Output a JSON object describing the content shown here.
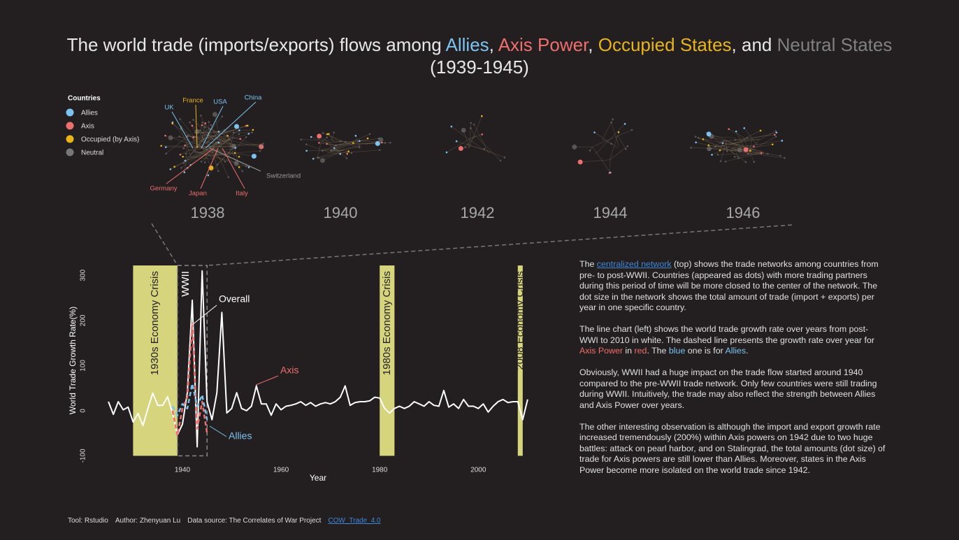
{
  "header": {
    "title": [
      {
        "text": "The world trade (imports/exports) flows among "
      },
      {
        "text": "Allies",
        "color": "#7cc3f0"
      },
      {
        "text": ", "
      },
      {
        "text": "Axis Power",
        "color": "#ef6e6e"
      },
      {
        "text": ", "
      },
      {
        "text": "Occupied States",
        "color": "#e8b419"
      },
      {
        "text": ", and "
      },
      {
        "text": "Neutral States",
        "color": "#808080"
      }
    ],
    "subtitle": "(1939-1945)"
  },
  "network": {
    "legend_title": "Countries",
    "legend": [
      {
        "label": "Allies",
        "color": "#7cc3f0"
      },
      {
        "label": "Axis",
        "color": "#ef6e6e"
      },
      {
        "label": "Occupied (by Axis)",
        "color": "#e8b419"
      },
      {
        "label": "Neutral",
        "color": "#777777"
      }
    ],
    "years": [
      "1938",
      "1940",
      "1942",
      "1944",
      "1946"
    ],
    "countries": [
      "UK",
      "France",
      "USA",
      "China",
      "Switzerland",
      "Germany",
      "Japan",
      "Italy"
    ]
  },
  "chart_data": {
    "type": "line",
    "y_label": "World Trade Growth Rate(%)",
    "x_label": "Year",
    "xlim": [
      1923,
      2012
    ],
    "xticks": [
      1940,
      1960,
      1980,
      2000
    ],
    "ylim": [
      -100,
      322
    ],
    "yticks": [
      -100,
      0,
      100,
      200,
      300
    ],
    "bands": [
      {
        "label": "1930s Economy Crisis",
        "start": 1930,
        "end": 1939,
        "color": "#d6d57e"
      },
      {
        "label": "1980s Economy Crisis",
        "start": 1980,
        "end": 1983,
        "color": "#d6d57e"
      },
      {
        "label": "2008 Economy Crisis",
        "start": 2008,
        "end": 2009,
        "color": "#d6d57e"
      }
    ],
    "period": {
      "label": "WWII",
      "start": 1939,
      "end": 1945
    },
    "series": [
      {
        "name": "Overall",
        "color": "#ffffff",
        "dashed": false,
        "x": [
          1925,
          1926,
          1927,
          1928,
          1929,
          1930,
          1931,
          1932,
          1933,
          1934,
          1935,
          1936,
          1937,
          1938,
          1939,
          1940,
          1941,
          1942,
          1943,
          1944,
          1945,
          1946,
          1947,
          1948,
          1949,
          1950,
          1951,
          1952,
          1953,
          1954,
          1955,
          1956,
          1957,
          1958,
          1959,
          1960,
          1961,
          1962,
          1963,
          1964,
          1965,
          1966,
          1967,
          1968,
          1969,
          1970,
          1971,
          1972,
          1973,
          1974,
          1975,
          1976,
          1977,
          1978,
          1979,
          1980,
          1981,
          1982,
          1983,
          1984,
          1985,
          1986,
          1987,
          1988,
          1989,
          1990,
          1991,
          1992,
          1993,
          1994,
          1995,
          1996,
          1997,
          1998,
          1999,
          2000,
          2001,
          2002,
          2003,
          2004,
          2005,
          2006,
          2007,
          2008,
          2009,
          2010
        ],
        "values": [
          20,
          -8,
          20,
          2,
          8,
          -25,
          -6,
          -33,
          5,
          39,
          12,
          12,
          31,
          -6,
          -53,
          -30,
          40,
          245,
          -80,
          310,
          20,
          -20,
          40,
          218,
          -5,
          5,
          40,
          5,
          0,
          10,
          55,
          15,
          15,
          -10,
          15,
          2,
          10,
          12,
          15,
          20,
          12,
          18,
          10,
          15,
          18,
          15,
          20,
          30,
          55,
          12,
          18,
          20,
          20,
          22,
          30,
          28,
          5,
          -5,
          5,
          10,
          5,
          10,
          20,
          15,
          10,
          20,
          12,
          10,
          45,
          8,
          15,
          5,
          25,
          10,
          10,
          5,
          15,
          -3,
          10,
          20,
          25,
          18,
          20,
          20,
          -20,
          25
        ]
      },
      {
        "name": "Axis",
        "color": "#ef6e6e",
        "dashed": true,
        "x": [
          1938,
          1939,
          1940,
          1941,
          1942,
          1943,
          1944,
          1945
        ],
        "values": [
          0,
          -55,
          5,
          30,
          195,
          -40,
          20,
          -50
        ]
      },
      {
        "name": "Allies",
        "color": "#7cc3f0",
        "dashed": true,
        "x": [
          1938,
          1939,
          1940,
          1941,
          1942,
          1943,
          1944,
          1945
        ],
        "values": [
          10,
          -10,
          15,
          5,
          60,
          10,
          35,
          -20
        ]
      }
    ]
  },
  "text": {
    "paragraphs": [
      [
        {
          "text": "The "
        },
        {
          "text": "centralized network",
          "link": true
        },
        {
          "text": " (top) shows the trade networks among countries from pre- to post-WWII. Countries (appeared as dots) with more trading partners during this period of time will be more closed to the center of the network. The dot size in the network shows the total amount of trade (import + exports) per year in one specific country."
        }
      ],
      [
        {
          "text": "The line chart (left) shows the world trade growth rate over years from post-WWI to 2010 in white. The dashed line presents the growth rate over year for "
        },
        {
          "text": "Axis Power",
          "color": "#ef6e6e"
        },
        {
          "text": " in "
        },
        {
          "text": "red",
          "color": "#ef6e6e"
        },
        {
          "text": ". The "
        },
        {
          "text": "blue",
          "color": "#7cc3f0"
        },
        {
          "text": " one is for "
        },
        {
          "text": "Allies",
          "color": "#7cc3f0"
        },
        {
          "text": "."
        }
      ],
      [
        {
          "text": "Obviously, WWII had a huge impact on the trade flow started around 1940 compared to the pre-WWII trade network. Only few countries were still trading during WWII. Intuitively, the trade may also reflect the strength between Allies and Axis Power over years."
        }
      ],
      [
        {
          "text": "The other interesting observation is although the import and export growth rate increased tremendously (200%) within Axis powers on 1942 due to two huge battles: attack on pearl harbor, and on Stalingrad, the total amounts (dot size) of trade for Axis powers are still lower than Allies. Moreover, states in the Axis Power become more isolated on the world trade since 1942."
        }
      ]
    ]
  },
  "footer": [
    {
      "text": "Tool: Rstudio"
    },
    {
      "text": "Author: Zhenyuan Lu"
    },
    {
      "text": "Data source: The Correlates of War Project"
    },
    {
      "text": "COW_Trade_4.0",
      "link": true
    }
  ]
}
